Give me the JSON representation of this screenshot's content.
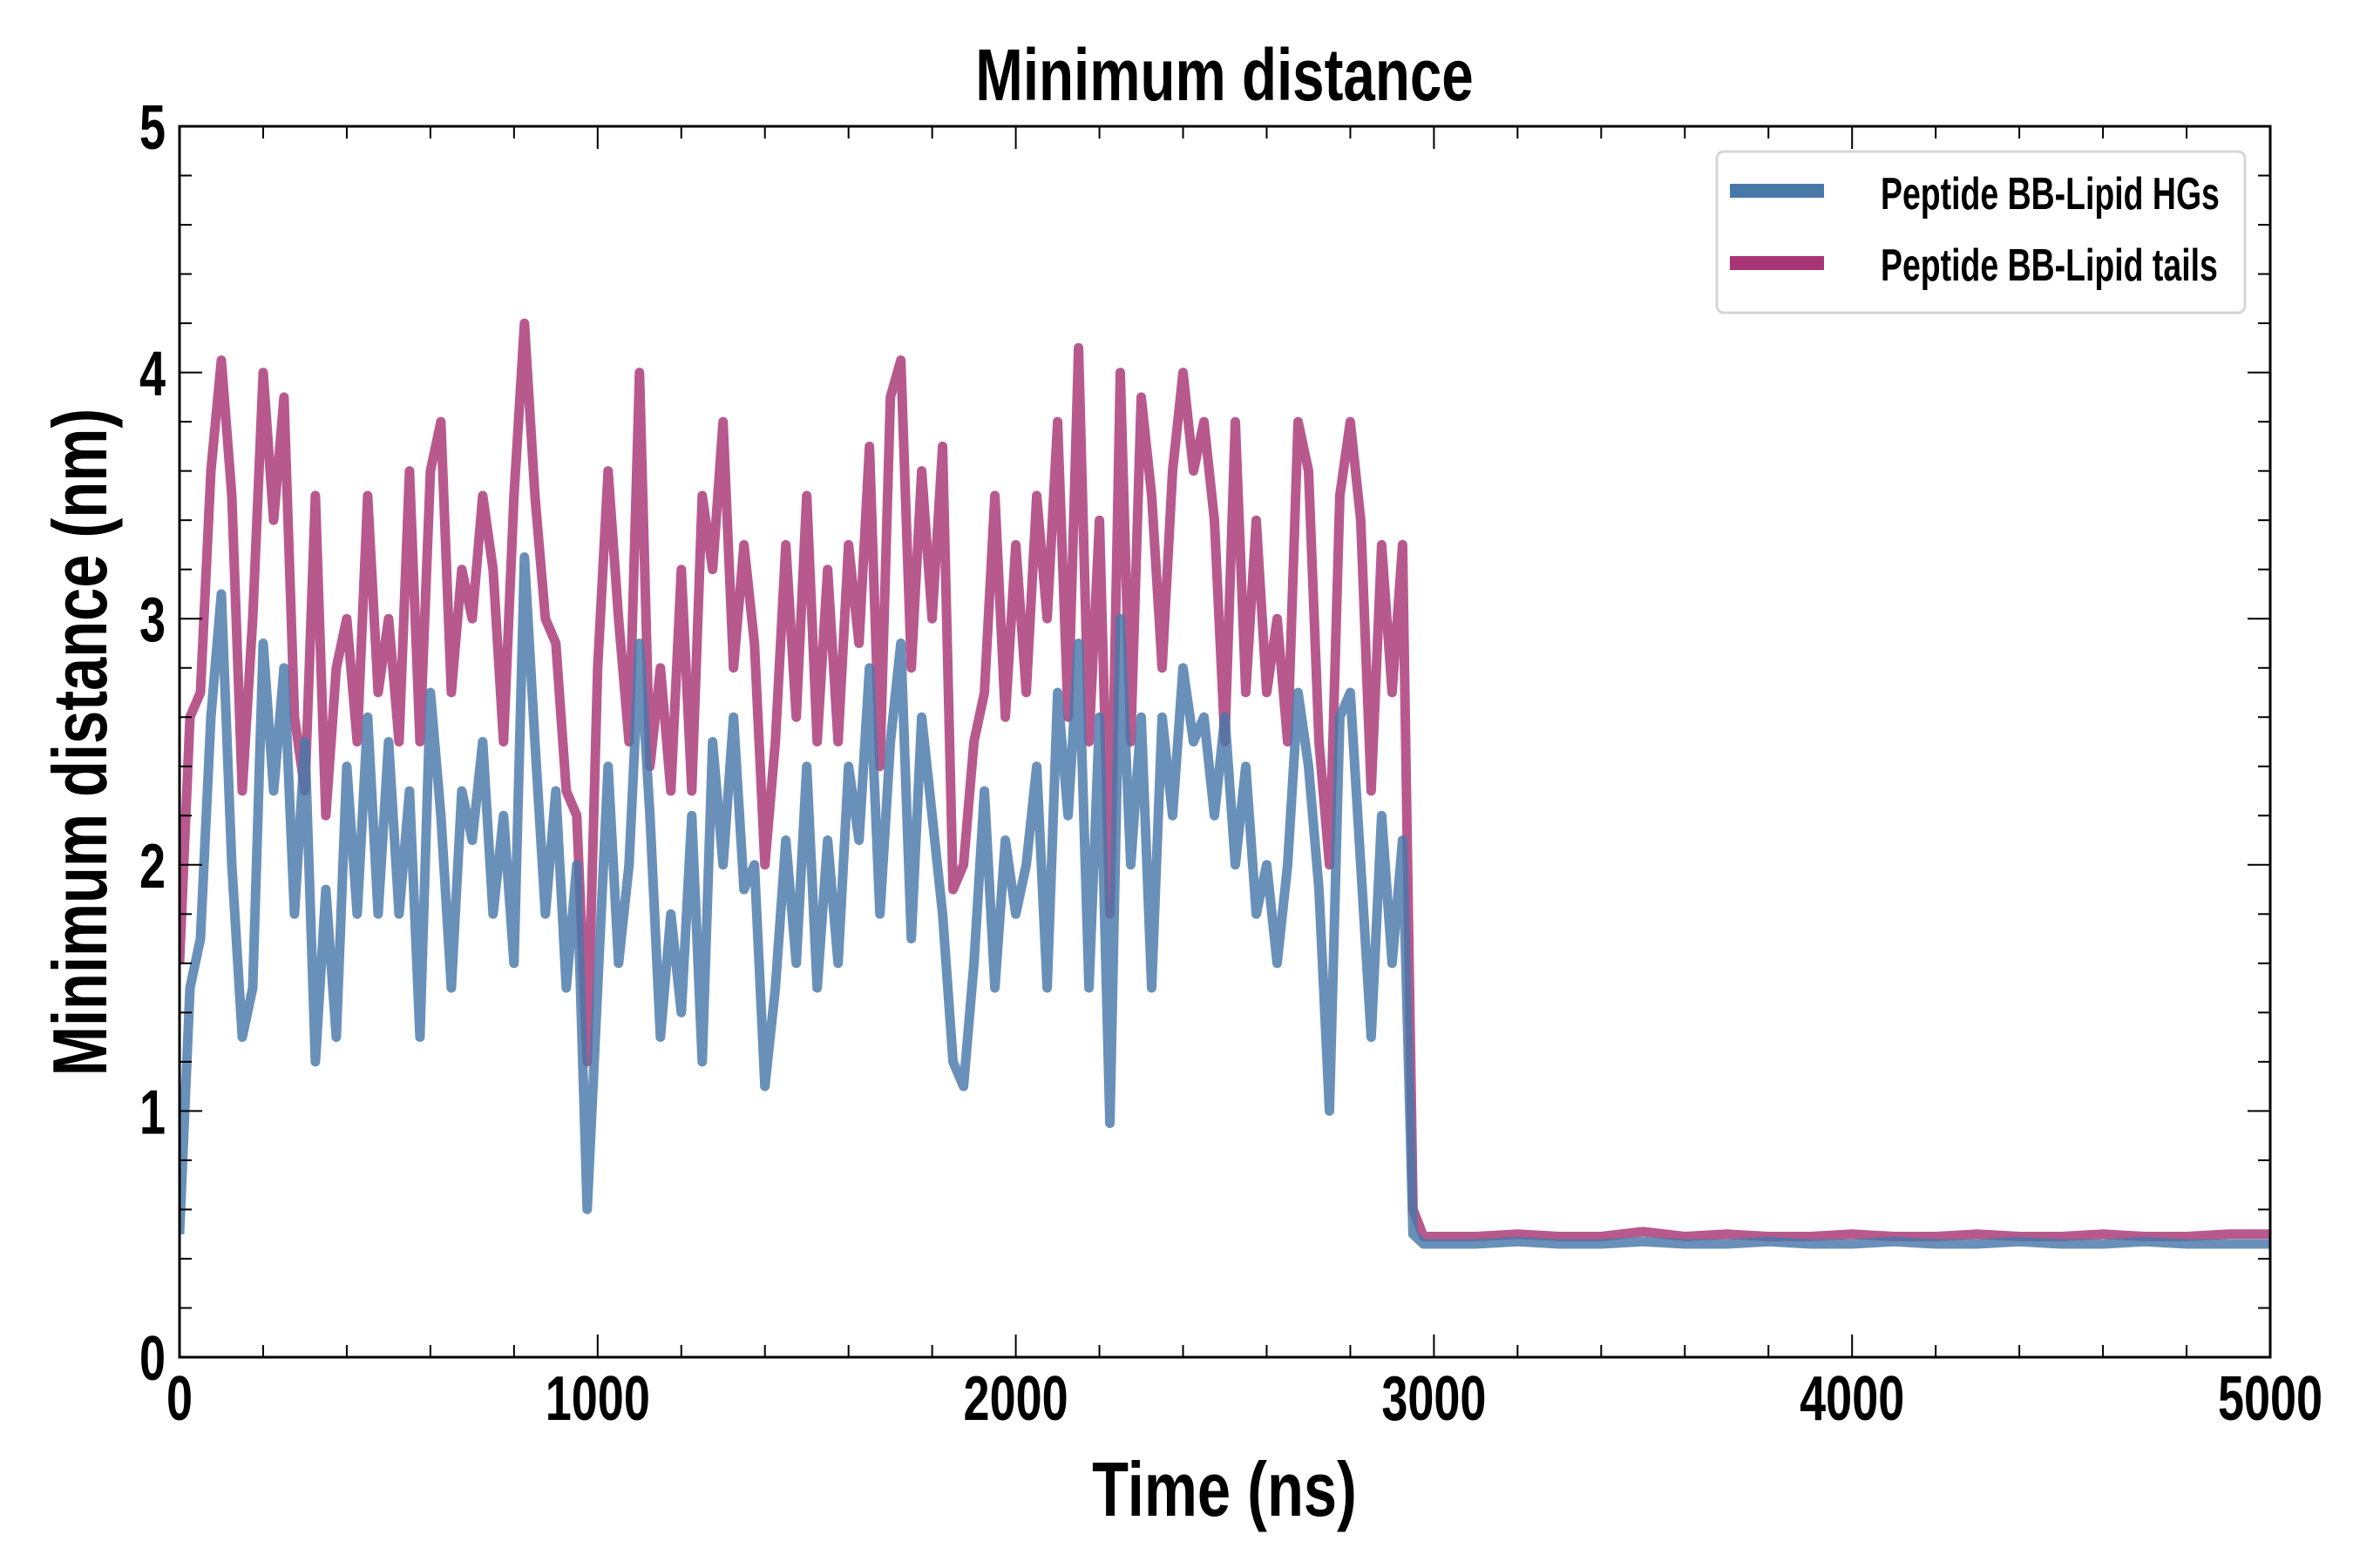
{
  "chart_data": {
    "type": "line",
    "title": "Minimum distance",
    "xlabel": "Time (ns)",
    "ylabel": "Minimum distance (nm)",
    "xlim": [
      0,
      5000
    ],
    "ylim": [
      0,
      5
    ],
    "xticks": [
      "0",
      "1000",
      "2000",
      "3000",
      "4000",
      "5000"
    ],
    "yticks": [
      "0",
      "1",
      "2",
      "3",
      "4",
      "5"
    ],
    "grid": false,
    "legend_position": "top-right",
    "x": [
      0,
      25,
      50,
      75,
      100,
      125,
      150,
      175,
      200,
      225,
      250,
      275,
      300,
      325,
      350,
      375,
      400,
      425,
      450,
      475,
      500,
      525,
      550,
      575,
      600,
      625,
      650,
      675,
      700,
      725,
      750,
      775,
      800,
      825,
      850,
      875,
      900,
      925,
      950,
      975,
      1000,
      1025,
      1050,
      1075,
      1100,
      1125,
      1150,
      1175,
      1200,
      1225,
      1250,
      1275,
      1300,
      1325,
      1350,
      1375,
      1400,
      1425,
      1450,
      1475,
      1500,
      1525,
      1550,
      1575,
      1600,
      1625,
      1650,
      1675,
      1700,
      1725,
      1750,
      1775,
      1800,
      1825,
      1850,
      1875,
      1900,
      1925,
      1950,
      1975,
      2000,
      2025,
      2050,
      2075,
      2100,
      2125,
      2150,
      2175,
      2200,
      2225,
      2250,
      2275,
      2300,
      2325,
      2350,
      2375,
      2400,
      2425,
      2450,
      2475,
      2500,
      2525,
      2550,
      2575,
      2600,
      2625,
      2650,
      2675,
      2700,
      2725,
      2750,
      2775,
      2800,
      2825,
      2850,
      2875,
      2900,
      2925,
      2950,
      2975,
      3000,
      3100,
      3200,
      3300,
      3400,
      3500,
      3600,
      3700,
      3800,
      3900,
      4000,
      4100,
      4200,
      4300,
      4400,
      4500,
      4600,
      4700,
      4800,
      4900,
      5000
    ],
    "series": [
      {
        "name": "Peptide BB-Lipid HGs",
        "color": "#4878a8",
        "values": [
          0.5,
          1.5,
          1.7,
          2.6,
          3.1,
          2.0,
          1.3,
          1.5,
          2.9,
          2.3,
          2.8,
          1.8,
          2.5,
          1.2,
          1.9,
          1.3,
          2.4,
          1.8,
          2.6,
          1.8,
          2.5,
          1.8,
          2.3,
          1.3,
          2.7,
          2.2,
          1.5,
          2.3,
          2.1,
          2.5,
          1.8,
          2.2,
          1.6,
          3.25,
          2.5,
          1.8,
          2.3,
          1.5,
          2.0,
          0.6,
          1.5,
          2.4,
          1.6,
          2.0,
          2.9,
          2.2,
          1.3,
          1.8,
          1.4,
          2.2,
          1.2,
          2.5,
          2.0,
          2.6,
          1.9,
          2.0,
          1.1,
          1.5,
          2.1,
          1.6,
          2.4,
          1.5,
          2.1,
          1.6,
          2.4,
          2.1,
          2.8,
          1.8,
          2.5,
          2.9,
          1.7,
          2.6,
          2.2,
          1.8,
          1.2,
          1.1,
          1.6,
          2.3,
          1.5,
          2.1,
          1.8,
          2.0,
          2.4,
          1.5,
          2.7,
          2.2,
          2.9,
          1.5,
          2.6,
          0.95,
          3.0,
          2.0,
          2.6,
          1.5,
          2.6,
          2.2,
          2.8,
          2.5,
          2.6,
          2.2,
          2.6,
          2.0,
          2.4,
          1.8,
          2.0,
          1.6,
          2.0,
          2.7,
          2.4,
          1.9,
          1.0,
          2.6,
          2.7,
          2.0,
          1.3,
          2.2,
          1.6,
          2.1,
          0.5,
          0.46,
          0.46,
          0.46,
          0.47,
          0.46,
          0.46,
          0.47,
          0.46,
          0.46,
          0.47,
          0.46,
          0.46,
          0.47,
          0.46,
          0.46,
          0.47,
          0.46,
          0.46,
          0.47,
          0.46,
          0.46,
          0.46
        ]
      },
      {
        "name": "Peptide BB-Lipid tails",
        "color": "#a83575",
        "values": [
          1.6,
          2.6,
          2.7,
          3.6,
          4.05,
          3.5,
          2.3,
          3.0,
          4.0,
          3.4,
          3.9,
          2.6,
          2.3,
          3.5,
          2.2,
          2.8,
          3.0,
          2.5,
          3.5,
          2.7,
          3.0,
          2.5,
          3.6,
          2.5,
          3.6,
          3.8,
          2.7,
          3.2,
          3.0,
          3.5,
          3.2,
          2.5,
          3.5,
          4.2,
          3.5,
          3.0,
          2.9,
          2.3,
          2.2,
          1.2,
          2.8,
          3.6,
          3.0,
          2.5,
          4.0,
          2.4,
          2.8,
          2.3,
          3.2,
          2.3,
          3.5,
          3.2,
          3.8,
          2.8,
          3.3,
          2.9,
          2.0,
          2.5,
          3.3,
          2.6,
          3.5,
          2.5,
          3.2,
          2.5,
          3.3,
          2.9,
          3.7,
          2.4,
          3.9,
          4.05,
          2.8,
          3.6,
          3.0,
          3.7,
          1.9,
          2.0,
          2.5,
          2.7,
          3.5,
          2.6,
          3.3,
          2.7,
          3.5,
          3.0,
          3.8,
          2.6,
          4.1,
          2.5,
          3.4,
          1.8,
          4.0,
          2.5,
          3.9,
          3.5,
          2.8,
          3.6,
          4.0,
          3.6,
          3.8,
          3.4,
          2.5,
          3.8,
          2.7,
          3.4,
          2.7,
          3.0,
          2.5,
          3.8,
          3.6,
          2.5,
          2.0,
          3.5,
          3.8,
          3.4,
          2.3,
          3.3,
          2.7,
          3.3,
          0.6,
          0.49,
          0.49,
          0.49,
          0.5,
          0.49,
          0.49,
          0.51,
          0.49,
          0.5,
          0.49,
          0.49,
          0.5,
          0.49,
          0.49,
          0.5,
          0.49,
          0.49,
          0.5,
          0.49,
          0.49,
          0.5,
          0.5
        ]
      }
    ]
  }
}
